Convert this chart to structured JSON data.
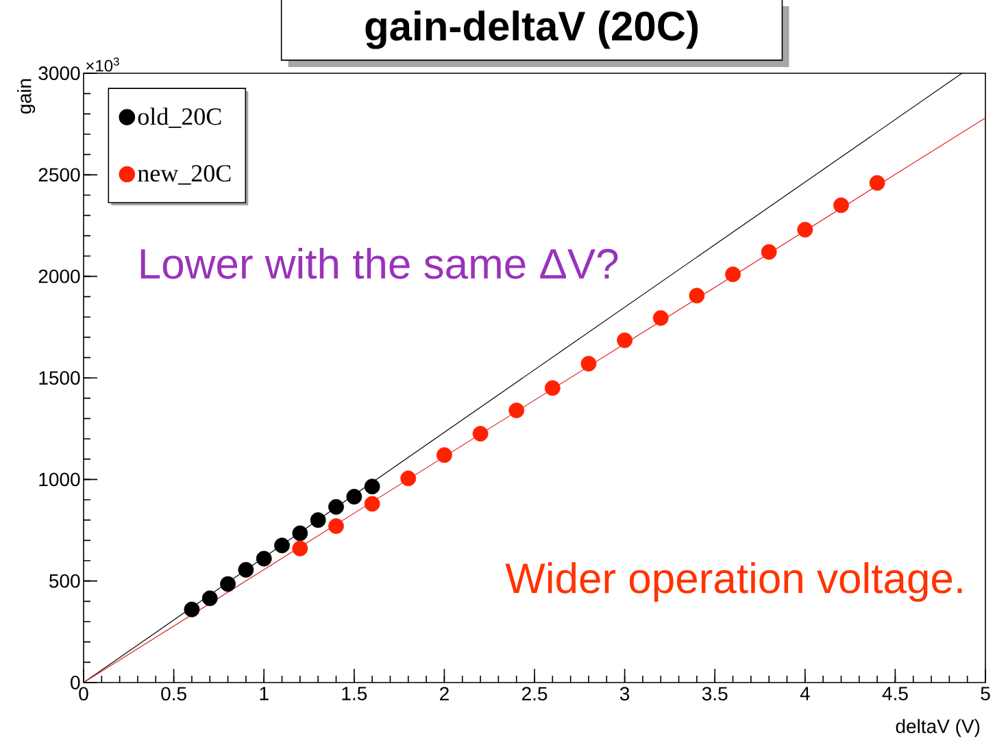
{
  "chart_data": {
    "type": "scatter",
    "title": "gain-deltaV (20C)",
    "xlabel": "deltaV (V)",
    "ylabel": "gain",
    "annotations": [
      "×10$^{3}$",
      "Lower with the same ΔV?",
      "Wider operation voltage."
    ],
    "xlim": [
      0,
      5
    ],
    "ylim": [
      0,
      3000
    ],
    "xticks": [
      0,
      0.5,
      1,
      1.5,
      2,
      2.5,
      3,
      3.5,
      4,
      4.5,
      5
    ],
    "yticks": [
      0,
      500,
      1000,
      1500,
      2000,
      2500,
      3000
    ],
    "legend": "top left",
    "marker": "circle",
    "series": [
      {
        "name": "old_20C",
        "color": "#000000",
        "x": [
          0.6,
          0.7,
          0.8,
          0.9,
          1.0,
          1.1,
          1.2,
          1.3,
          1.4,
          1.5,
          1.6
        ],
        "values": [
          360,
          415,
          485,
          555,
          610,
          675,
          735,
          800,
          865,
          915,
          965
        ]
      },
      {
        "name": "new_20C",
        "color": "#ff2200",
        "x": [
          1.2,
          1.4,
          1.6,
          1.8,
          2.0,
          2.2,
          2.4,
          2.6,
          2.8,
          3.0,
          3.2,
          3.4,
          3.6,
          3.8,
          4.0,
          4.2,
          4.4
        ],
        "values": [
          660,
          770,
          880,
          1005,
          1120,
          1225,
          1340,
          1450,
          1570,
          1685,
          1795,
          1905,
          2010,
          2120,
          2230,
          2350,
          2460
        ]
      },
      {
        "type": "line",
        "marker": "none",
        "color": "#000000",
        "x": [
          0,
          4.87
        ],
        "values": [
          0,
          3000
        ]
      },
      {
        "type": "line",
        "marker": "none",
        "color": "#dd2222",
        "x": [
          0,
          5
        ],
        "values": [
          0,
          2780
        ]
      }
    ]
  }
}
